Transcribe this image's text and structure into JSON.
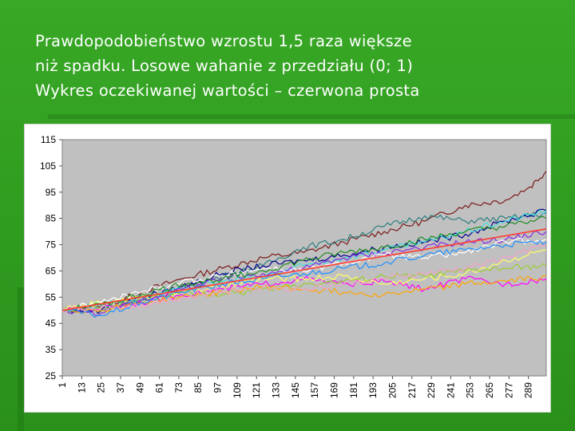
{
  "slide": {
    "title_lines": [
      "Prawdopodobieństwo wzrostu 1,5 raza większe",
      "niż spadku. Losowe wahanie z przedziału (0; 1)",
      "Wykres oczekiwanej wartości – czerwona prosta"
    ]
  },
  "colors": {
    "background": "#2e9a1f",
    "plot_area": "#c0c0c0",
    "expected_line": "#ff3b30"
  },
  "chart_data": {
    "type": "line",
    "title": "",
    "xlabel": "",
    "ylabel": "",
    "ylim": [
      25,
      115
    ],
    "yticks": [
      25,
      35,
      45,
      55,
      65,
      75,
      85,
      95,
      105,
      115
    ],
    "x_range": [
      1,
      300
    ],
    "xtick_labels": [
      "1",
      "13",
      "25",
      "37",
      "49",
      "61",
      "73",
      "85",
      "97",
      "109",
      "121",
      "133",
      "145",
      "157",
      "169",
      "181",
      "193",
      "205",
      "217",
      "229",
      "241",
      "253",
      "265",
      "277",
      "289"
    ],
    "grid": false,
    "legend": "none",
    "series": [
      {
        "color": "#7b1a1a",
        "points": [
          [
            1,
            50
          ],
          [
            25,
            51
          ],
          [
            50,
            57
          ],
          [
            75,
            62
          ],
          [
            100,
            66
          ],
          [
            125,
            70
          ],
          [
            150,
            72
          ],
          [
            175,
            76
          ],
          [
            200,
            80
          ],
          [
            225,
            84
          ],
          [
            250,
            90
          ],
          [
            275,
            92
          ],
          [
            290,
            97
          ],
          [
            300,
            103
          ]
        ]
      },
      {
        "color": "#2f7f7f",
        "points": [
          [
            1,
            50
          ],
          [
            25,
            50
          ],
          [
            50,
            54
          ],
          [
            75,
            58
          ],
          [
            100,
            63
          ],
          [
            125,
            67
          ],
          [
            150,
            74
          ],
          [
            175,
            77
          ],
          [
            200,
            82
          ],
          [
            225,
            86
          ],
          [
            250,
            84
          ],
          [
            275,
            85
          ],
          [
            300,
            87
          ]
        ]
      },
      {
        "color": "#00008b",
        "points": [
          [
            1,
            50
          ],
          [
            25,
            50
          ],
          [
            50,
            55
          ],
          [
            75,
            59
          ],
          [
            100,
            64
          ],
          [
            125,
            67
          ],
          [
            150,
            69
          ],
          [
            175,
            71
          ],
          [
            200,
            74
          ],
          [
            225,
            76
          ],
          [
            250,
            79
          ],
          [
            275,
            84
          ],
          [
            300,
            88
          ]
        ]
      },
      {
        "color": "#40e0e0",
        "points": [
          [
            1,
            50
          ],
          [
            25,
            52
          ],
          [
            50,
            55
          ],
          [
            75,
            58
          ],
          [
            100,
            61
          ],
          [
            125,
            63
          ],
          [
            150,
            67
          ],
          [
            175,
            70
          ],
          [
            200,
            73
          ],
          [
            225,
            76
          ],
          [
            250,
            80
          ],
          [
            275,
            84
          ],
          [
            300,
            88
          ]
        ]
      },
      {
        "color": "#ff00ff",
        "points": [
          [
            1,
            50
          ],
          [
            25,
            51
          ],
          [
            50,
            53
          ],
          [
            75,
            56
          ],
          [
            100,
            58
          ],
          [
            125,
            60
          ],
          [
            150,
            62
          ],
          [
            175,
            60
          ],
          [
            200,
            61
          ],
          [
            225,
            58
          ],
          [
            250,
            62
          ],
          [
            275,
            60
          ],
          [
            300,
            62
          ]
        ]
      },
      {
        "color": "#ffff66",
        "points": [
          [
            1,
            50
          ],
          [
            25,
            53
          ],
          [
            50,
            55
          ],
          [
            75,
            57
          ],
          [
            100,
            59
          ],
          [
            125,
            62
          ],
          [
            150,
            62
          ],
          [
            175,
            63
          ],
          [
            200,
            60
          ],
          [
            225,
            62
          ],
          [
            250,
            64
          ],
          [
            275,
            69
          ],
          [
            300,
            73
          ]
        ]
      },
      {
        "color": "#9acd32",
        "points": [
          [
            1,
            50
          ],
          [
            25,
            51
          ],
          [
            50,
            54
          ],
          [
            75,
            57
          ],
          [
            100,
            56
          ],
          [
            125,
            58
          ],
          [
            150,
            60
          ],
          [
            175,
            61
          ],
          [
            200,
            63
          ],
          [
            225,
            63
          ],
          [
            250,
            65
          ],
          [
            275,
            66
          ],
          [
            300,
            67
          ]
        ]
      },
      {
        "color": "#8a2be2",
        "points": [
          [
            1,
            50
          ],
          [
            25,
            49
          ],
          [
            50,
            54
          ],
          [
            75,
            58
          ],
          [
            100,
            62
          ],
          [
            125,
            64
          ],
          [
            150,
            66
          ],
          [
            175,
            70
          ],
          [
            200,
            72
          ],
          [
            225,
            74
          ],
          [
            250,
            76
          ],
          [
            275,
            77
          ],
          [
            300,
            80
          ]
        ]
      },
      {
        "color": "#ffffff",
        "points": [
          [
            1,
            50
          ],
          [
            25,
            53
          ],
          [
            50,
            57
          ],
          [
            75,
            61
          ],
          [
            100,
            63
          ],
          [
            125,
            66
          ],
          [
            150,
            65
          ],
          [
            175,
            68
          ],
          [
            200,
            71
          ],
          [
            225,
            70
          ],
          [
            250,
            72
          ],
          [
            275,
            76
          ],
          [
            300,
            77
          ]
        ]
      },
      {
        "color": "#ffa500",
        "points": [
          [
            1,
            50
          ],
          [
            25,
            50
          ],
          [
            50,
            53
          ],
          [
            75,
            55
          ],
          [
            100,
            57
          ],
          [
            125,
            59
          ],
          [
            150,
            58
          ],
          [
            175,
            57
          ],
          [
            200,
            56
          ],
          [
            225,
            58
          ],
          [
            250,
            60
          ],
          [
            275,
            61
          ],
          [
            300,
            63
          ]
        ]
      },
      {
        "color": "#228b22",
        "points": [
          [
            1,
            50
          ],
          [
            25,
            52
          ],
          [
            50,
            56
          ],
          [
            75,
            60
          ],
          [
            100,
            62
          ],
          [
            125,
            65
          ],
          [
            150,
            69
          ],
          [
            175,
            72
          ],
          [
            200,
            74
          ],
          [
            225,
            77
          ],
          [
            250,
            80
          ],
          [
            275,
            82
          ],
          [
            300,
            85
          ]
        ]
      },
      {
        "color": "#1e90ff",
        "points": [
          [
            1,
            50
          ],
          [
            25,
            48
          ],
          [
            50,
            53
          ],
          [
            75,
            57
          ],
          [
            100,
            60
          ],
          [
            125,
            62
          ],
          [
            150,
            64
          ],
          [
            175,
            66
          ],
          [
            200,
            68
          ],
          [
            225,
            71
          ],
          [
            250,
            73
          ],
          [
            275,
            75
          ],
          [
            300,
            76
          ]
        ]
      },
      {
        "color": "#f4a0c8",
        "points": [
          [
            1,
            50
          ],
          [
            25,
            51
          ],
          [
            50,
            52
          ],
          [
            75,
            55
          ],
          [
            100,
            57
          ],
          [
            125,
            59
          ],
          [
            150,
            58
          ],
          [
            175,
            60
          ],
          [
            200,
            62
          ],
          [
            225,
            64
          ],
          [
            250,
            66
          ],
          [
            275,
            70
          ],
          [
            300,
            75
          ]
        ]
      },
      {
        "color": "#ff3b30",
        "points": [
          [
            1,
            50
          ],
          [
            300,
            81
          ]
        ]
      }
    ]
  }
}
